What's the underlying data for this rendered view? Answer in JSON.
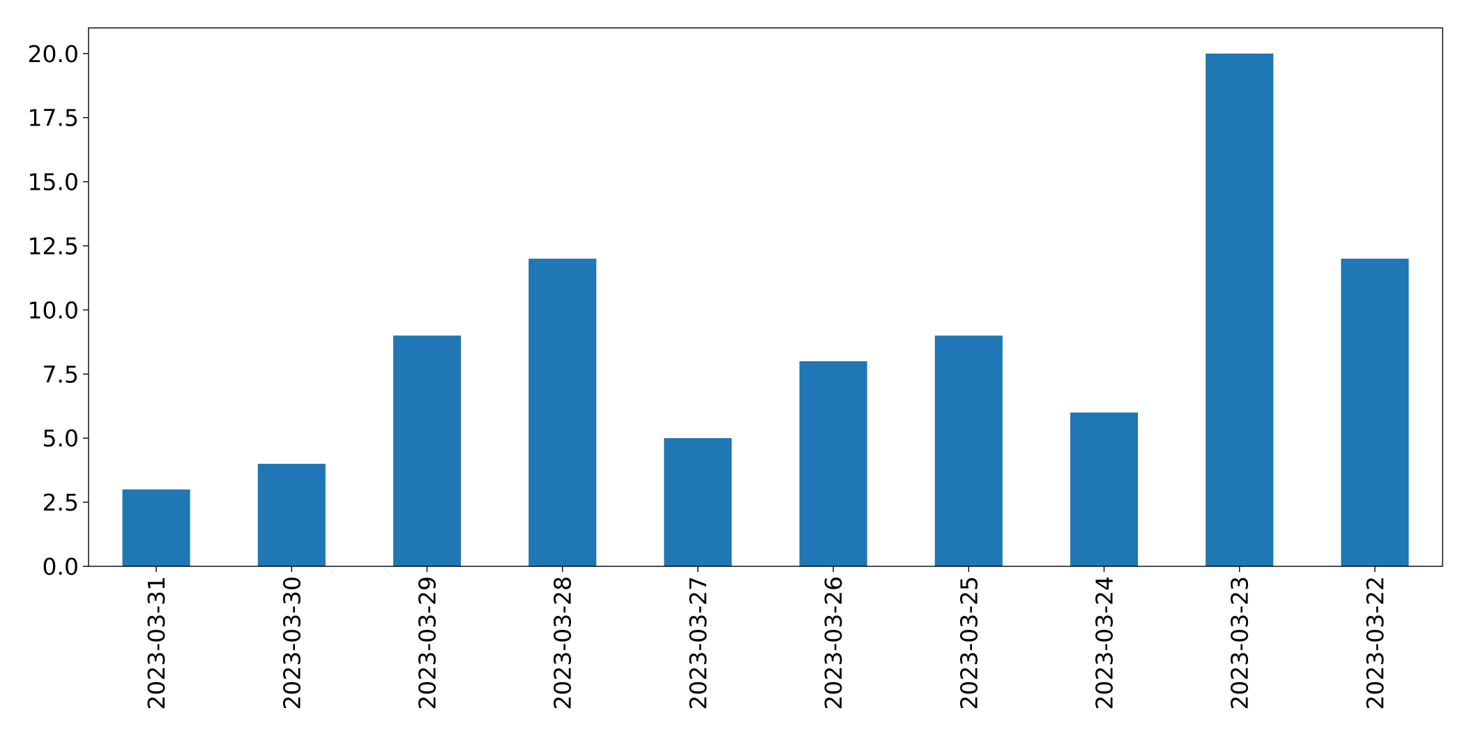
{
  "chart_data": {
    "type": "bar",
    "title": "",
    "xlabel": "",
    "ylabel": "",
    "categories": [
      "2023-03-31",
      "2023-03-30",
      "2023-03-29",
      "2023-03-28",
      "2023-03-27",
      "2023-03-26",
      "2023-03-25",
      "2023-03-24",
      "2023-03-23",
      "2023-03-22"
    ],
    "values": [
      3,
      4,
      9,
      12,
      5,
      8,
      9,
      6,
      20,
      12
    ],
    "ylim": [
      0,
      21
    ],
    "yticks": [
      0.0,
      2.5,
      5.0,
      7.5,
      10.0,
      12.5,
      15.0,
      17.5,
      20.0
    ],
    "ytick_labels": [
      "0.0",
      "2.5",
      "5.0",
      "7.5",
      "10.0",
      "12.5",
      "15.0",
      "17.5",
      "20.0"
    ],
    "bar_color": "#1f77b4",
    "grid": false,
    "legend": "none",
    "x_tick_rotation": "vertical"
  }
}
